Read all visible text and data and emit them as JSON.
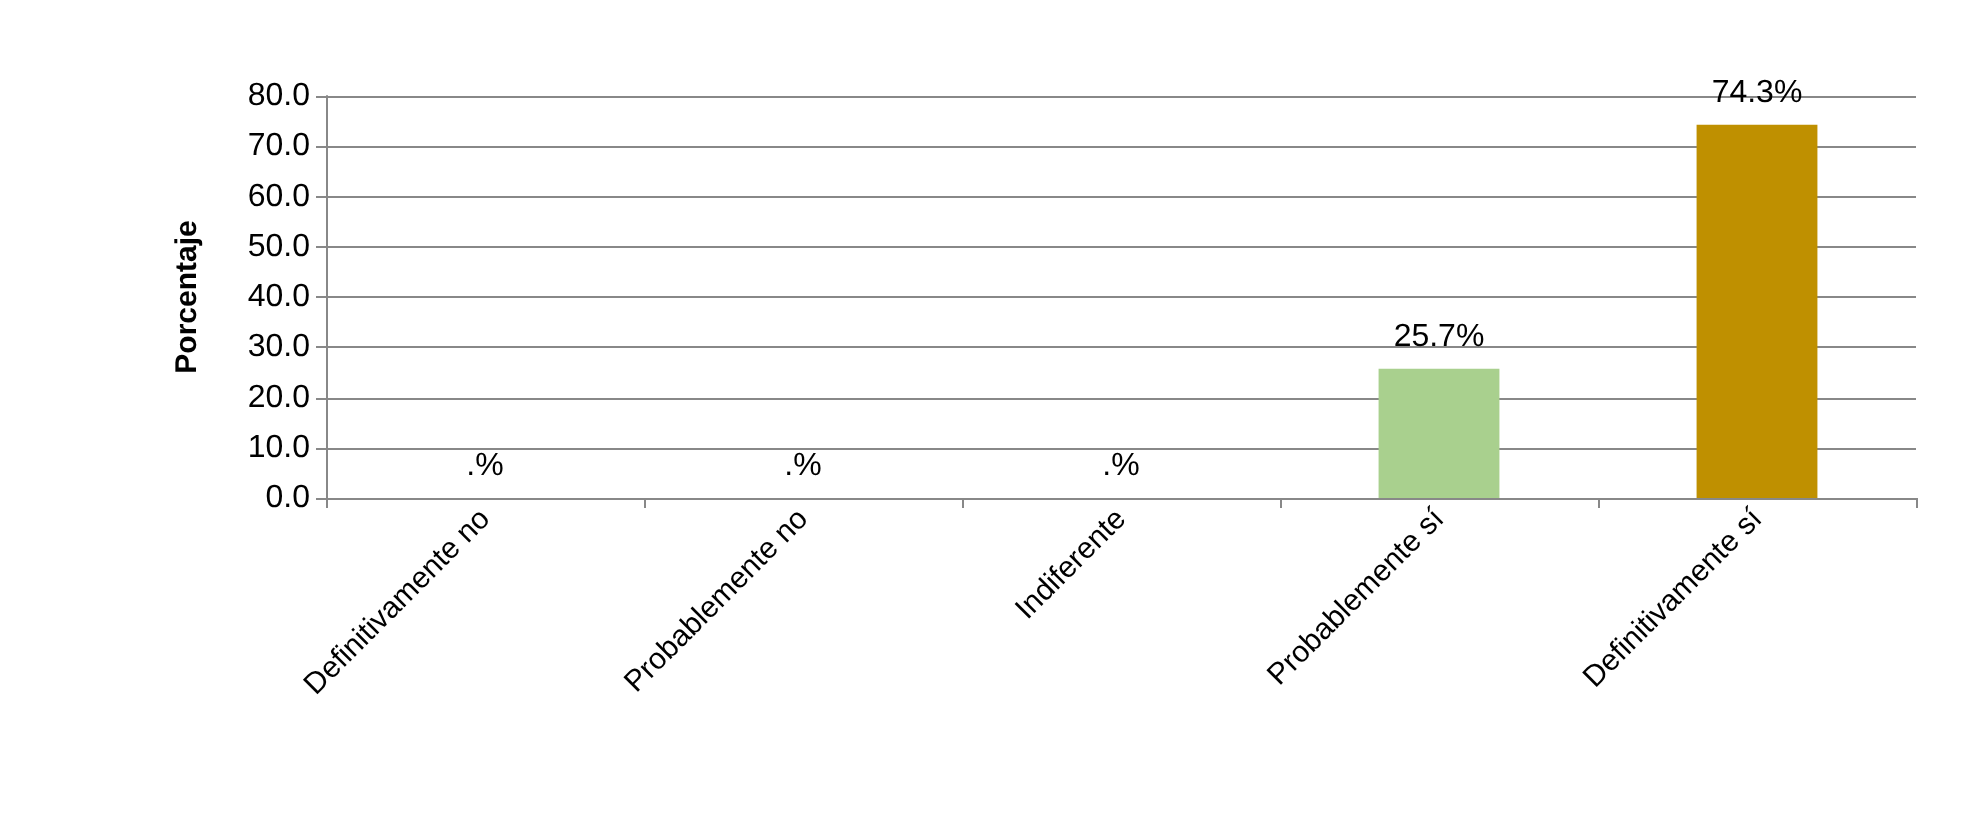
{
  "chart_data": {
    "type": "bar",
    "ylabel": "Porcentaje",
    "categories": [
      "Definitivamente no",
      "Probablemente no",
      "Indiferente",
      "Probablemente sí",
      "Definitivamente sí"
    ],
    "values": [
      0,
      0,
      0,
      25.7,
      74.3
    ],
    "colors": [
      "#a9d08e",
      "#a9d08e",
      "#a9d08e",
      "#a9d08e",
      "#bf9000"
    ],
    "value_labels": [
      ".%",
      ".%",
      ".%",
      "25.7%",
      "74.3%"
    ],
    "ylim": [
      0,
      80
    ],
    "yticks": [
      {
        "value": 0,
        "label": "0.0"
      },
      {
        "value": 10,
        "label": "10.0"
      },
      {
        "value": 20,
        "label": "20.0"
      },
      {
        "value": 30,
        "label": "30.0"
      },
      {
        "value": 40,
        "label": "40.0"
      },
      {
        "value": 50,
        "label": "50.0"
      },
      {
        "value": 60,
        "label": "60.0"
      },
      {
        "value": 70,
        "label": "70.0"
      },
      {
        "value": 80,
        "label": "80.0"
      }
    ],
    "grid": "y"
  }
}
